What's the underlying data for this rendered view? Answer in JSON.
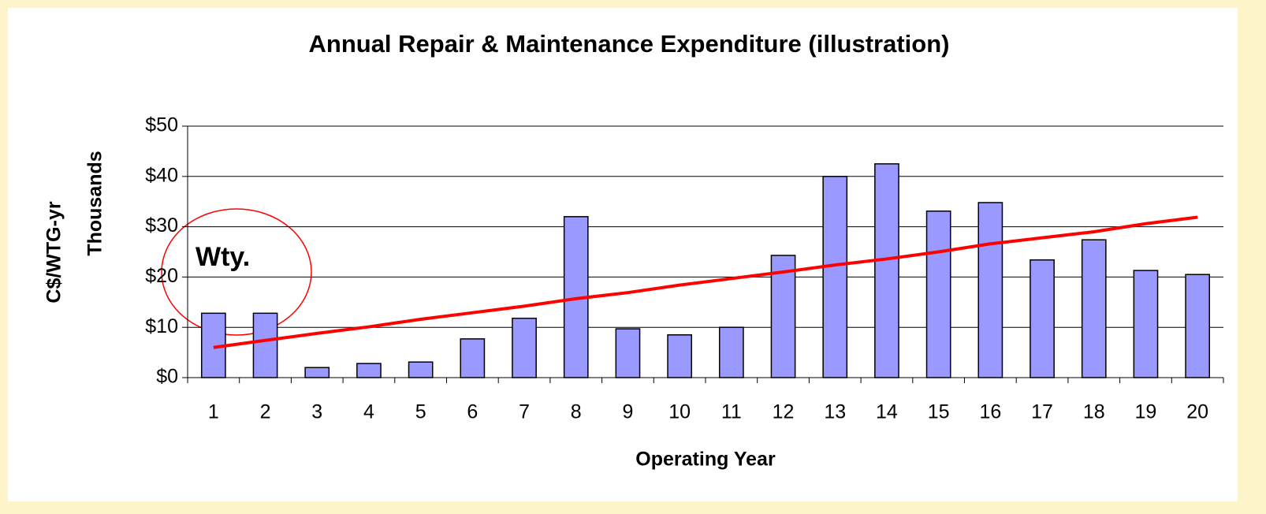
{
  "chart_data": {
    "type": "bar",
    "title": "Annual Repair & Maintenance Expenditure (illustration)",
    "y_label": "C$/WTG-yr",
    "y_sublabel": "Thousands",
    "x_label": "Operating Year",
    "annotation": "Wty.",
    "categories": [
      "1",
      "2",
      "3",
      "4",
      "5",
      "6",
      "7",
      "8",
      "9",
      "10",
      "11",
      "12",
      "13",
      "14",
      "15",
      "16",
      "17",
      "18",
      "19",
      "20"
    ],
    "series": [
      {
        "type": "bar",
        "color": "#9999ff",
        "values": [
          12.8,
          12.8,
          2.0,
          2.8,
          3.1,
          7.7,
          11.8,
          32.0,
          9.7,
          8.5,
          10.0,
          24.3,
          40.0,
          42.5,
          33.1,
          34.8,
          23.4,
          27.4,
          21.3,
          20.5
        ]
      },
      {
        "type": "line",
        "color": "#ff0000",
        "values": [
          6.0,
          7.4,
          8.8,
          10.1,
          11.6,
          12.9,
          14.2,
          15.7,
          16.9,
          18.4,
          19.7,
          21.0,
          22.4,
          23.6,
          25.0,
          26.6,
          27.8,
          29.0,
          30.6,
          31.9
        ]
      }
    ],
    "ylim": [
      0,
      50
    ],
    "yticks": [
      {
        "value": 0,
        "label": "$0"
      },
      {
        "value": 10,
        "label": "$10"
      },
      {
        "value": 20,
        "label": "$20"
      },
      {
        "value": 30,
        "label": "$30"
      },
      {
        "value": 40,
        "label": "$40"
      },
      {
        "value": 50,
        "label": "$50"
      }
    ],
    "grid": true
  }
}
